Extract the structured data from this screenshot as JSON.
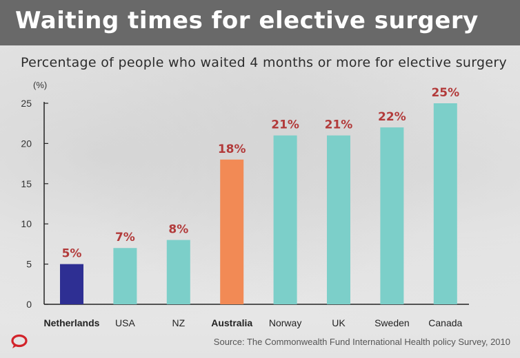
{
  "banner": {
    "title": "Waiting times for elective surgery"
  },
  "chart_data": {
    "type": "bar",
    "title": "Percentage of people who waited 4 months or more for elective surgery",
    "ylabel": "(%)",
    "xlabel": "",
    "ylim": [
      0,
      25
    ],
    "yticks": [
      "0",
      "5",
      "10",
      "15",
      "20",
      "25"
    ],
    "categories": [
      "Netherlands",
      "USA",
      "NZ",
      "Australia",
      "Norway",
      "UK",
      "Sweden",
      "Canada"
    ],
    "values": [
      5,
      7,
      8,
      18,
      21,
      21,
      22,
      25
    ],
    "value_labels": [
      "5%",
      "7%",
      "8%",
      "18%",
      "21%",
      "21%",
      "22%",
      "25%"
    ],
    "bold_categories": [
      "Netherlands",
      "Australia"
    ],
    "grid": false,
    "colors": {
      "default": "#7ccfc9",
      "Netherlands": "#2e2f93",
      "Australia": "#f28a55",
      "value_label": "#b23a3a"
    }
  },
  "source": "Source: The Commonwealth Fund International Health policy Survey, 2010"
}
